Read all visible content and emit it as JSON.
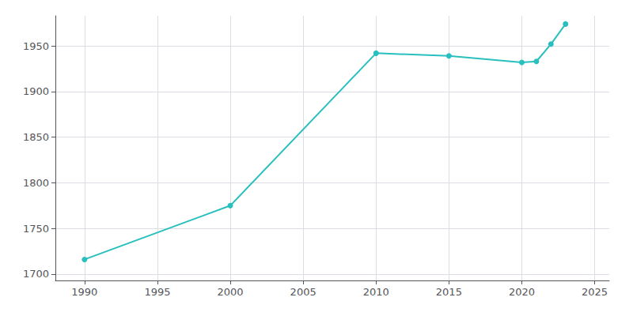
{
  "chart_data": {
    "type": "line",
    "x": [
      1990,
      2000,
      2010,
      2015,
      2020,
      2021,
      2022,
      2023
    ],
    "values": [
      1716,
      1775,
      1942,
      1939,
      1932,
      1933,
      1952,
      1974
    ],
    "color": "#2ABFBF",
    "marker": "circle",
    "xlim": [
      1988,
      2026
    ],
    "ylim": [
      1693,
      1983
    ],
    "xticks": [
      1990,
      1995,
      2000,
      2005,
      2010,
      2015,
      2020,
      2025
    ],
    "yticks": [
      1700,
      1750,
      1800,
      1850,
      1900,
      1950
    ],
    "grid": true
  }
}
